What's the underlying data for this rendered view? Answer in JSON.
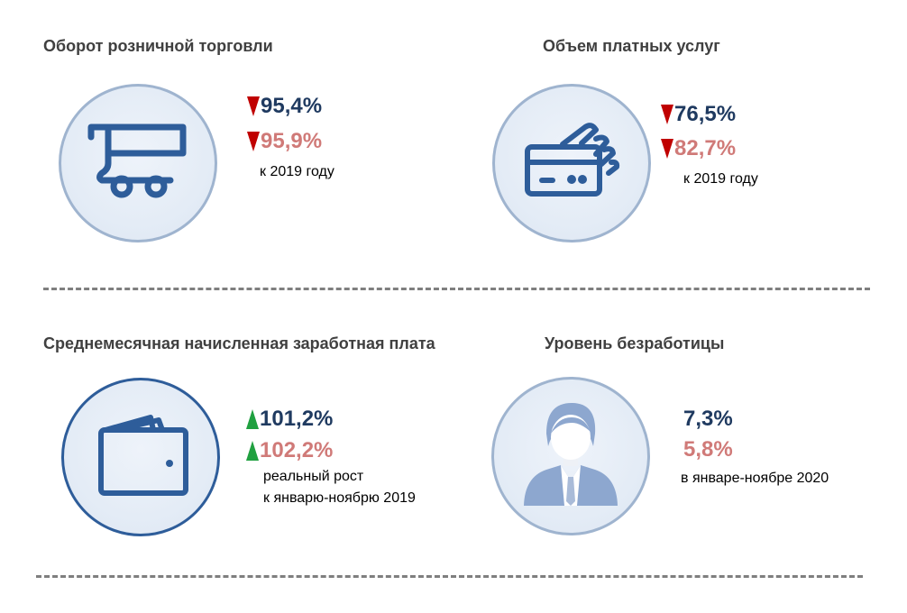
{
  "colors": {
    "accent": "#2e5d9a",
    "value_primary": "#1f3a60",
    "value_secondary": "#d07a78",
    "arrow_down": "#c00000",
    "arrow_up": "#20a040"
  },
  "retail": {
    "title": "Оборот розничной торговли",
    "icon": "shopping-cart-icon",
    "value1": "95,4%",
    "value1_trend": "down",
    "value2": "95,9%",
    "value2_trend": "down",
    "note": "к 2019 году"
  },
  "services": {
    "title": "Объем платных услуг",
    "icon": "card-payment-icon",
    "value1": "76,5%",
    "value1_trend": "down",
    "value2": "82,7%",
    "value2_trend": "down",
    "note": "к 2019 году"
  },
  "wages": {
    "title": "Среднемесячная начисленная заработная плата",
    "icon": "wallet-icon",
    "value1": "101,2%",
    "value1_trend": "up",
    "value2": "102,2%",
    "value2_trend": "up",
    "note_line1": "реальный рост",
    "note_line2": "к январю-ноябрю 2019"
  },
  "unemployment": {
    "title": "Уровень безработицы",
    "icon": "person-icon",
    "value1": "7,3%",
    "value2": "5,8%",
    "note": "в январе-ноябре 2020"
  }
}
